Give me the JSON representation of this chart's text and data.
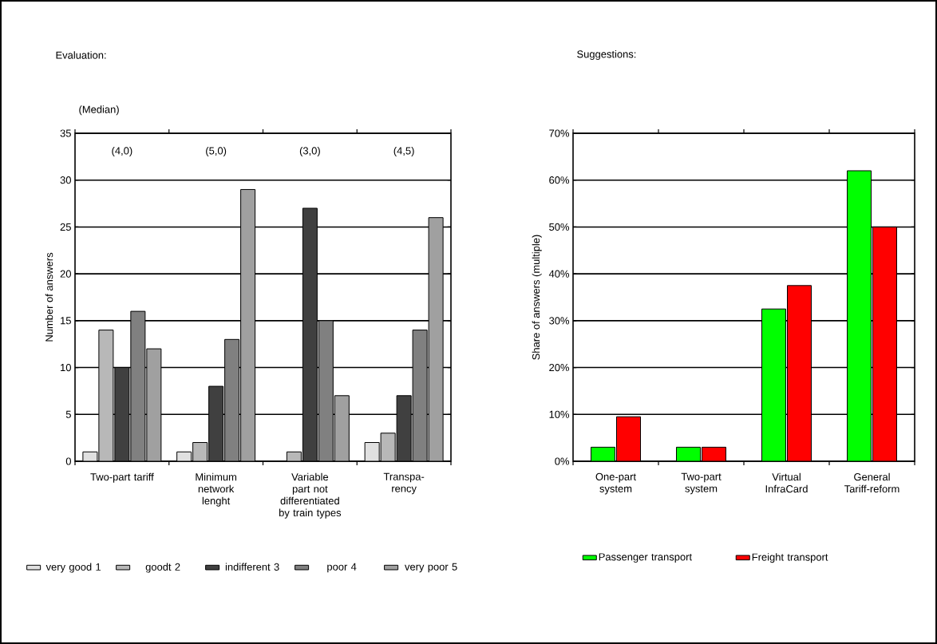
{
  "chart_data": [
    {
      "type": "bar",
      "title": "Evaluation:",
      "ylabel": "Number of answers",
      "categories": [
        "Two-part tariff",
        "Minimum network lenght",
        "Variable part not differentiated by train types",
        "Transpa-rency"
      ],
      "series": [
        {
          "name": "very good 1",
          "color": "#e0e0e0",
          "values": [
            1,
            1,
            0,
            2
          ]
        },
        {
          "name": "goodt 2",
          "color": "#b8b8b8",
          "values": [
            14,
            2,
            1,
            3
          ]
        },
        {
          "name": "indifferent 3",
          "color": "#404040",
          "values": [
            10,
            8,
            27,
            7
          ]
        },
        {
          "name": "poor 4",
          "color": "#808080",
          "values": [
            16,
            13,
            15,
            14
          ]
        },
        {
          "name": "very poor 5",
          "color": "#a0a0a0",
          "values": [
            12,
            29,
            7,
            26
          ]
        }
      ],
      "ylim": [
        0,
        35
      ],
      "yticks": [
        0,
        5,
        10,
        15,
        20,
        25,
        30,
        35
      ],
      "grid": "y",
      "legend": "bottom",
      "annotations": [
        "(Median)",
        "(4,0)",
        "(5,0)",
        "(3,0)",
        "(4,5)"
      ]
    },
    {
      "type": "bar",
      "title": "Suggestions:",
      "ylabel": "Share of answers (multiple)",
      "categories": [
        "One-part system",
        "Two-part system",
        "Virtual InfraCard",
        "General Tariff-reform"
      ],
      "series": [
        {
          "name": "Passenger transport",
          "color": "#00ff00",
          "values": [
            3,
            3,
            32.5,
            62
          ]
        },
        {
          "name": "Freight transport",
          "color": "#ff0000",
          "values": [
            9.5,
            3,
            37.5,
            50
          ]
        }
      ],
      "ylim": [
        0,
        70
      ],
      "yticks": [
        {
          "value": 0,
          "label": "0%"
        },
        {
          "value": 10,
          "label": "10%"
        },
        {
          "value": 20,
          "label": "20%"
        },
        {
          "value": 30,
          "label": "30%"
        },
        {
          "value": 40,
          "label": "40%"
        },
        {
          "value": 50,
          "label": "50%"
        },
        {
          "value": 60,
          "label": "60%"
        },
        {
          "value": 70,
          "label": "70%"
        }
      ],
      "grid": "y",
      "legend": "bottom"
    }
  ]
}
